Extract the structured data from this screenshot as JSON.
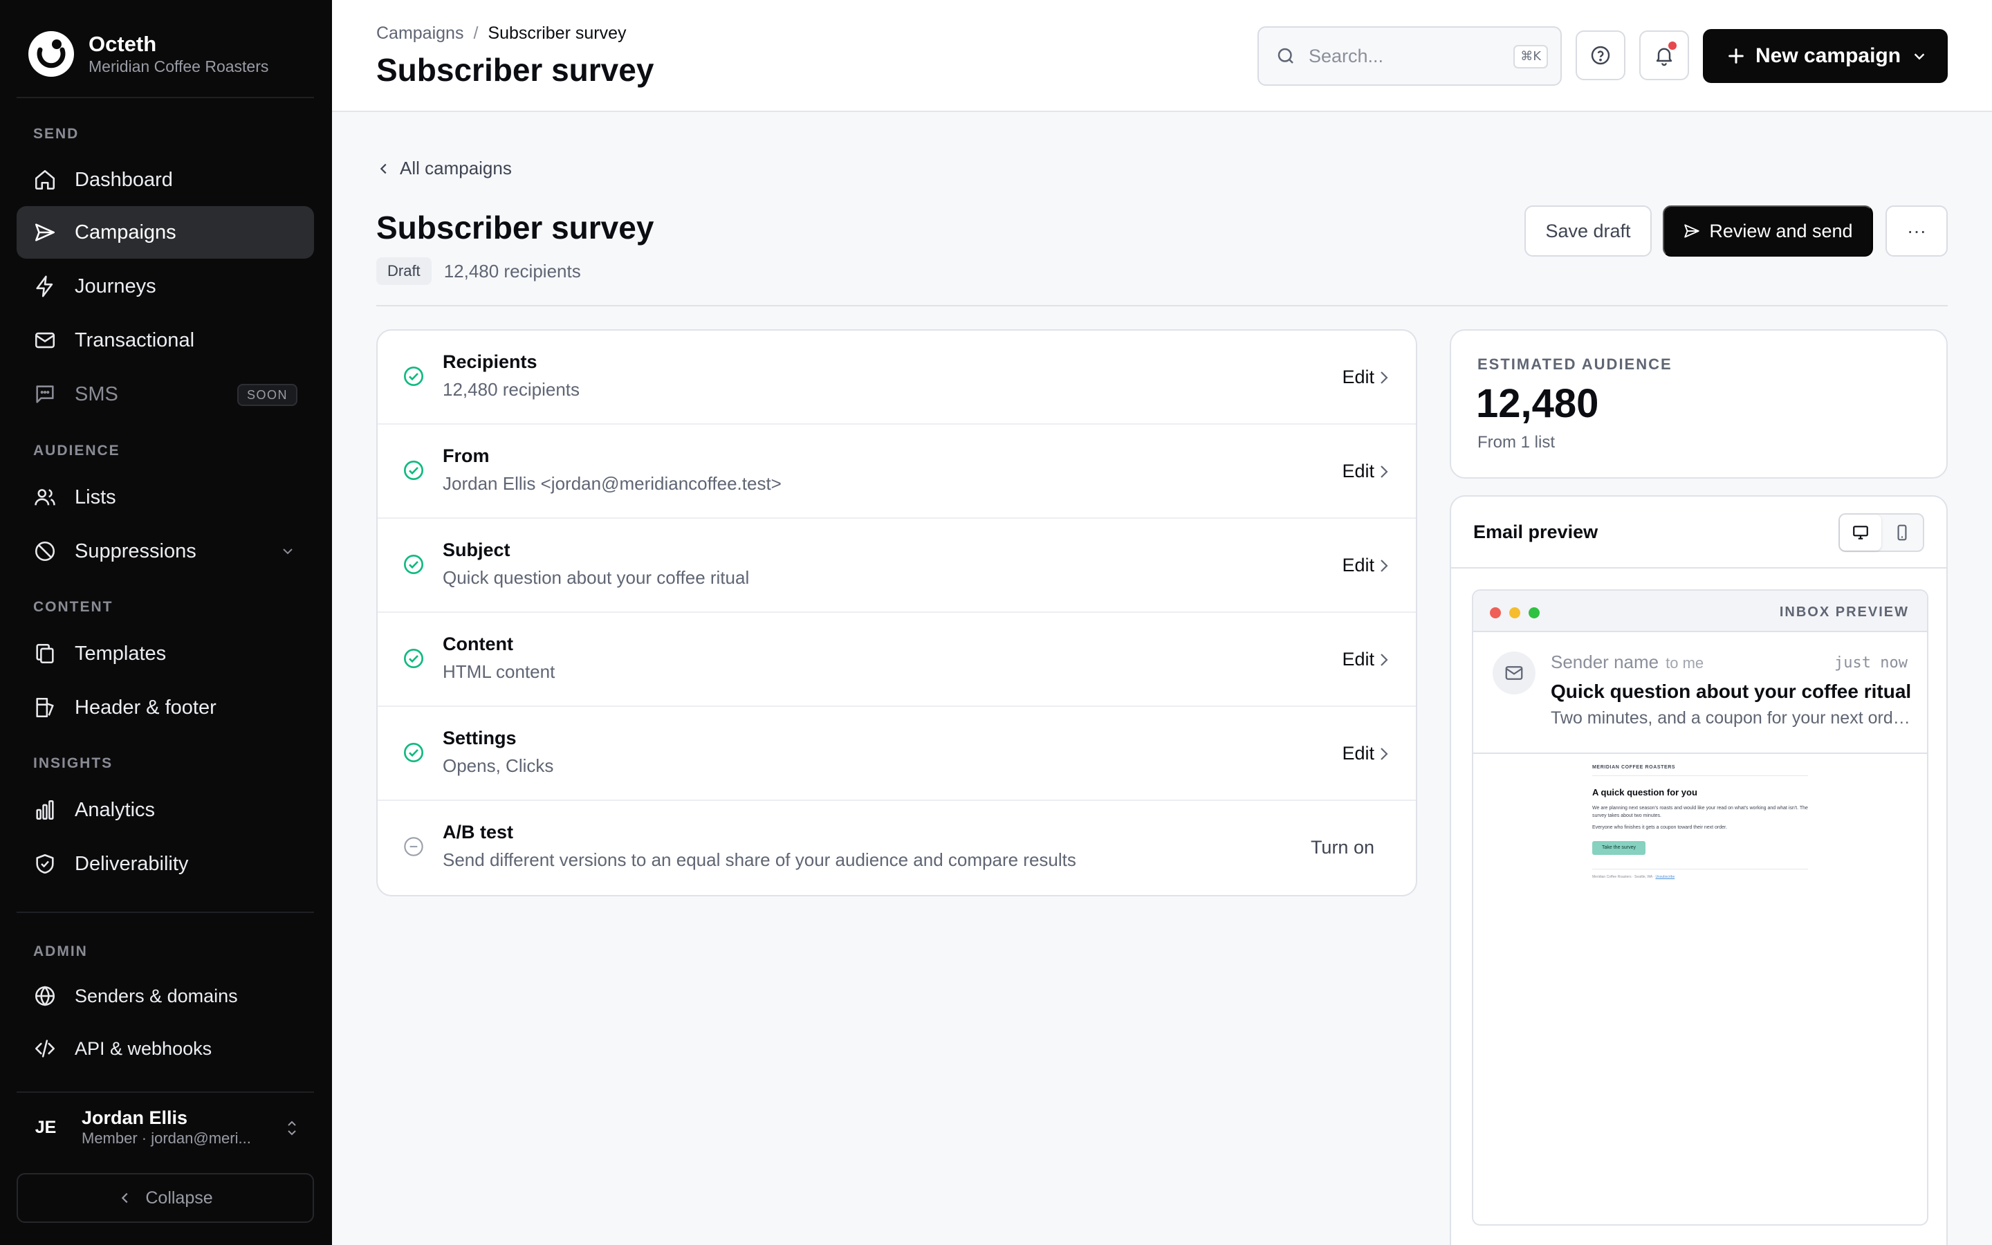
{
  "app": {
    "brand_name": "Octeth",
    "org_name": "Meridian Coffee Roasters"
  },
  "sidebar": {
    "sections": {
      "send": "SEND",
      "audience": "AUDIENCE",
      "content": "CONTENT",
      "insights": "INSIGHTS",
      "admin": "ADMIN"
    },
    "items": {
      "dashboard": "Dashboard",
      "campaigns": "Campaigns",
      "journeys": "Journeys",
      "transactional": "Transactional",
      "sms": "SMS",
      "sms_badge": "SOON",
      "lists": "Lists",
      "suppressions": "Suppressions",
      "templates": "Templates",
      "header_footer": "Header & footer",
      "analytics": "Analytics",
      "deliverability": "Deliverability",
      "senders_domains": "Senders & domains",
      "api_webhooks": "API & webhooks"
    },
    "active": "campaigns",
    "user": {
      "initials": "JE",
      "name": "Jordan Ellis",
      "meta": "Member · jordan@meri..."
    },
    "collapse_label": "Collapse"
  },
  "topbar": {
    "breadcrumb": [
      "Campaigns",
      "/",
      "Subscriber survey"
    ],
    "title": "Subscriber survey",
    "search_placeholder": "Search...",
    "search_shortcut": "⌘K",
    "new_campaign_label": "New campaign"
  },
  "main": {
    "back_label": "All campaigns",
    "title": "Subscriber survey",
    "status_badge": "Draft",
    "recipients_meta": "12,480 recipients",
    "save_draft_label": "Save draft",
    "review_send_label": "Review and send",
    "more_label": "···",
    "steps": [
      {
        "title": "Recipients",
        "subtitle": "12,480 recipients",
        "action": "Edit",
        "complete": true
      },
      {
        "title": "From",
        "subtitle": "Jordan Ellis <jordan@meridiancoffee.test>",
        "action": "Edit",
        "complete": true
      },
      {
        "title": "Subject",
        "subtitle": "Quick question about your coffee ritual",
        "action": "Edit",
        "complete": true
      },
      {
        "title": "Content",
        "subtitle": "HTML content",
        "action": "Edit",
        "complete": true
      },
      {
        "title": "Settings",
        "subtitle": "Opens, Clicks",
        "action": "Edit",
        "complete": true
      },
      {
        "title": "A/B test",
        "subtitle": "Send different versions to an equal share of your audience and compare results",
        "action": "Turn on",
        "complete": false
      }
    ]
  },
  "audience": {
    "label": "ESTIMATED AUDIENCE",
    "count": "12,480",
    "source": "From 1 list"
  },
  "preview": {
    "title": "Email preview",
    "inbox_label": "INBOX PREVIEW",
    "sender": "Sender name",
    "to": "to me",
    "time": "just now",
    "subject": "Quick question about your coffee ritual",
    "snippet": "Two minutes, and a coupon for your next order.",
    "email": {
      "brand": "MERIDIAN COFFEE ROASTERS",
      "heading": "A quick question for you",
      "para1": "We are planning next season's roasts and would like your read on what's working and what isn't. The survey takes about two minutes.",
      "para2": "Everyone who finishes it gets a coupon toward their next order.",
      "button": "Take the survey",
      "footer": "Meridian Coffee Roasters · Seattle, WA ·",
      "unsubscribe": "Unsubscribe"
    },
    "traffic_colors": [
      "#ee5f57",
      "#f5bd2e",
      "#2fc141"
    ]
  },
  "colors": {
    "check": "#10b981",
    "sidebar_bg": "#0a0a0b",
    "accent_dark": "#0a0a0b",
    "notification": "#e5484d"
  }
}
